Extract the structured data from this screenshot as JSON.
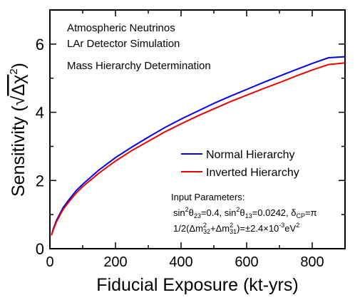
{
  "chart_data": {
    "type": "line",
    "title": "",
    "xlabel": "Fiducial Exposure (kt-yrs)",
    "ylabel": {
      "prefix": "Sensitivity (",
      "radical": "√",
      "delta_chi": "Δχ",
      "sup": "2",
      "suffix": ")"
    },
    "xlim": [
      0,
      900
    ],
    "ylim": [
      0,
      7
    ],
    "xticks": [
      0,
      200,
      400,
      600,
      800
    ],
    "yticks": [
      0,
      2,
      4,
      6
    ],
    "grid": false,
    "legend_placement": "right",
    "annotations": {
      "line1": "Atmospheric Neutrinos",
      "line2": "LAr Detector Simulation",
      "line3": "Mass Hierarchy Determination"
    },
    "params": {
      "title": "Input Parameters:",
      "p1": {
        "a": "sin",
        "a_sup": "2",
        "a_sym": "θ",
        "a_sub": "23",
        "a_val": "=0.4, sin",
        "b_sup": "2",
        "b_sym": "θ",
        "b_sub": "13",
        "b_val": "=0.0242, δ",
        "c_sub": "CP",
        "c_val": "=π"
      },
      "p2": {
        "pre": "1/2(Δm",
        "s1": "2",
        "b1": "32",
        "mid": "+Δm",
        "s2": "2",
        "b2": "31",
        "post": ")=±2.4×10",
        "exp": "-3",
        "unit": "eV",
        "unit_sup": "2"
      }
    },
    "series": [
      {
        "name": "Normal Hierarchy",
        "color": "#0000ee",
        "x": [
          5,
          10,
          20,
          40,
          60,
          80,
          100,
          150,
          200,
          250,
          300,
          350,
          400,
          450,
          500,
          550,
          600,
          650,
          700,
          750,
          800,
          850,
          900
        ],
        "y": [
          0.4,
          0.57,
          0.83,
          1.2,
          1.46,
          1.7,
          1.89,
          2.31,
          2.67,
          2.98,
          3.27,
          3.55,
          3.8,
          4.03,
          4.26,
          4.47,
          4.67,
          4.87,
          5.06,
          5.25,
          5.43,
          5.6,
          5.63
        ]
      },
      {
        "name": "Inverted Hierarchy",
        "color": "#ee0000",
        "x": [
          5,
          10,
          20,
          40,
          60,
          80,
          100,
          150,
          200,
          250,
          300,
          350,
          400,
          450,
          500,
          550,
          600,
          650,
          700,
          750,
          800,
          850,
          900
        ],
        "y": [
          0.39,
          0.55,
          0.79,
          1.15,
          1.4,
          1.63,
          1.82,
          2.22,
          2.57,
          2.88,
          3.15,
          3.42,
          3.66,
          3.89,
          4.1,
          4.31,
          4.5,
          4.69,
          4.87,
          5.06,
          5.24,
          5.4,
          5.45
        ]
      }
    ]
  }
}
